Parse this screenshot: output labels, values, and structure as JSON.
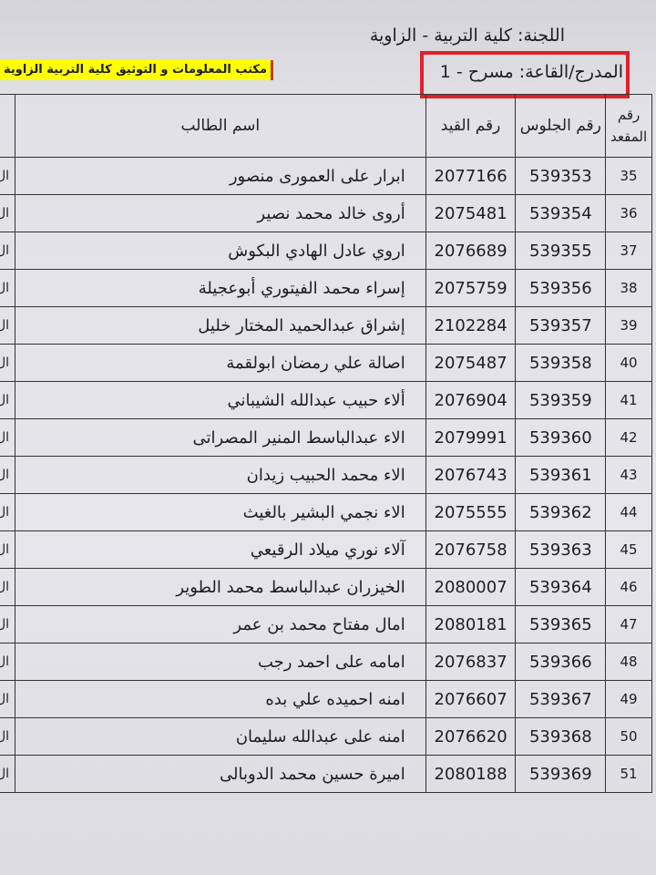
{
  "header": {
    "committee": "اللجنة: كلية التربية - الزاوية",
    "hall": "المدرج/القاعة:  مسرح - 1",
    "banner": "مكتب المعلومات  و التوثيق كلية التربية الزاوية",
    "highlight_color": "#e0202a",
    "banner_color": "#ffff00"
  },
  "table": {
    "columns": [
      "رقم المقعد",
      "رقم الجلوس",
      "رقم القيد",
      "اسم الطالب"
    ],
    "left_clip": "ال",
    "rows": [
      {
        "seat": "35",
        "number": "539353",
        "id": "2077166",
        "name": "ابرار على العمورى منصور"
      },
      {
        "seat": "36",
        "number": "539354",
        "id": "2075481",
        "name": "أروى خالد محمد نصير"
      },
      {
        "seat": "37",
        "number": "539355",
        "id": "2076689",
        "name": "اروي عادل الهادي البكوش"
      },
      {
        "seat": "38",
        "number": "539356",
        "id": "2075759",
        "name": "إسراء محمد الفيتوري أبوعجيلة"
      },
      {
        "seat": "39",
        "number": "539357",
        "id": "2102284",
        "name": "إشراق عبدالحميد المختار خليل"
      },
      {
        "seat": "40",
        "number": "539358",
        "id": "2075487",
        "name": "اصالة علي رمضان ابولقمة"
      },
      {
        "seat": "41",
        "number": "539359",
        "id": "2076904",
        "name": "ألاء حبيب عبدالله الشيباني"
      },
      {
        "seat": "42",
        "number": "539360",
        "id": "2079991",
        "name": "الاء عبدالباسط المنير المصراتى"
      },
      {
        "seat": "43",
        "number": "539361",
        "id": "2076743",
        "name": "الاء محمد الحبيب زيدان"
      },
      {
        "seat": "44",
        "number": "539362",
        "id": "2075555",
        "name": "الاء نجمي البشير بالغيث"
      },
      {
        "seat": "45",
        "number": "539363",
        "id": "2076758",
        "name": "آلاء نوري ميلاد الرقيعي"
      },
      {
        "seat": "46",
        "number": "539364",
        "id": "2080007",
        "name": "الخيزران عبدالباسط محمد الطوير"
      },
      {
        "seat": "47",
        "number": "539365",
        "id": "2080181",
        "name": "امال مفتاح محمد بن عمر"
      },
      {
        "seat": "48",
        "number": "539366",
        "id": "2076837",
        "name": "امامه على احمد رجب"
      },
      {
        "seat": "49",
        "number": "539367",
        "id": "2076607",
        "name": "امنه احميده علي بده"
      },
      {
        "seat": "50",
        "number": "539368",
        "id": "2076620",
        "name": "امنه على عبدالله سليمان"
      },
      {
        "seat": "51",
        "number": "539369",
        "id": "2080188",
        "name": "اميرة حسين محمد الدوبالى"
      }
    ]
  }
}
